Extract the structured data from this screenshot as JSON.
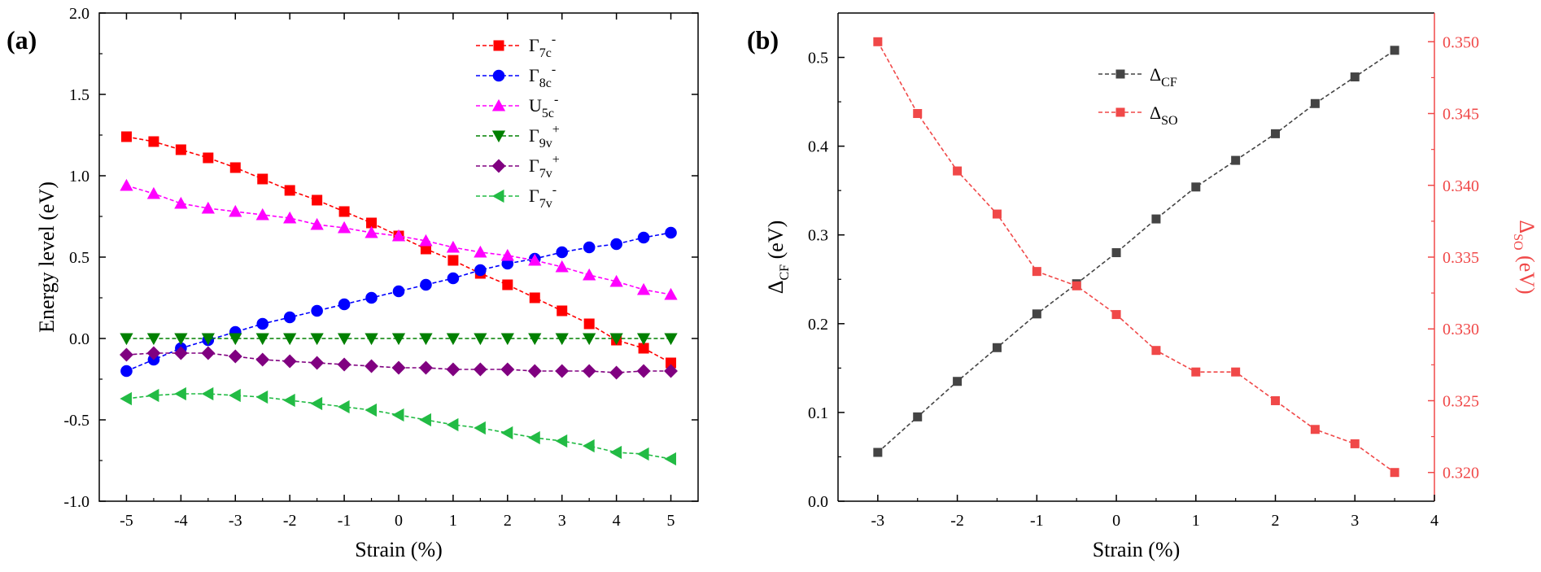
{
  "chart_data": [
    {
      "type": "line",
      "panel_label": "(a)",
      "xlabel": "Strain (%)",
      "ylabel": "Energy level (eV)",
      "xlim": [
        -5.5,
        5.5
      ],
      "ylim": [
        -1.0,
        2.0
      ],
      "xticks": [
        "-5",
        "-4",
        "-3",
        "-2",
        "-1",
        "0",
        "1",
        "2",
        "3",
        "4",
        "5"
      ],
      "yticks": [
        "-1.0",
        "-0.5",
        "0.0",
        "0.5",
        "1.0",
        "1.5",
        "2.0"
      ],
      "legend_position": "top-right",
      "x": [
        -5,
        -4.5,
        -4,
        -3.5,
        -3,
        -2.5,
        -2,
        -1.5,
        -1,
        -0.5,
        0,
        0.5,
        1,
        1.5,
        2,
        2.5,
        3,
        3.5,
        4,
        4.5,
        5
      ],
      "series": [
        {
          "name": "Γ7c-",
          "legend": {
            "main": "Γ",
            "sub": "7c",
            "sup": "-"
          },
          "color": "#ff0000",
          "marker": "square",
          "values": [
            1.24,
            1.21,
            1.16,
            1.11,
            1.05,
            0.98,
            0.91,
            0.85,
            0.78,
            0.71,
            0.63,
            0.55,
            0.48,
            0.4,
            0.33,
            0.25,
            0.17,
            0.09,
            -0.01,
            -0.06,
            -0.15
          ]
        },
        {
          "name": "Γ8c-",
          "legend": {
            "main": "Γ",
            "sub": "8c",
            "sup": "-"
          },
          "color": "#0000ff",
          "marker": "circle",
          "values": [
            -0.2,
            -0.13,
            -0.06,
            -0.01,
            0.04,
            0.09,
            0.13,
            0.17,
            0.21,
            0.25,
            0.29,
            0.33,
            0.37,
            0.42,
            0.46,
            0.49,
            0.53,
            0.56,
            0.58,
            0.62,
            0.65
          ]
        },
        {
          "name": "U5c-",
          "legend": {
            "main": "U",
            "sub": "5c",
            "sup": "-"
          },
          "color": "#ff00ff",
          "marker": "triangle-up",
          "values": [
            0.94,
            0.89,
            0.83,
            0.8,
            0.78,
            0.76,
            0.74,
            0.7,
            0.68,
            0.65,
            0.63,
            0.6,
            0.56,
            0.53,
            0.51,
            0.48,
            0.44,
            0.39,
            0.35,
            0.3,
            0.27
          ]
        },
        {
          "name": "Γ9v+",
          "legend": {
            "main": "Γ",
            "sub": "9v",
            "sup": "+"
          },
          "color": "#008000",
          "marker": "triangle-down",
          "values": [
            0.0,
            0.0,
            0.0,
            0.0,
            0.0,
            0.0,
            0.0,
            0.0,
            0.0,
            0.0,
            0.0,
            0.0,
            0.0,
            0.0,
            0.0,
            0.0,
            0.0,
            0.0,
            0.0,
            0.0,
            0.0
          ]
        },
        {
          "name": "Γ7v+",
          "legend": {
            "main": "Γ",
            "sub": "7v",
            "sup": "+"
          },
          "color": "#800080",
          "marker": "diamond",
          "values": [
            -0.1,
            -0.09,
            -0.09,
            -0.09,
            -0.11,
            -0.13,
            -0.14,
            -0.15,
            -0.16,
            -0.17,
            -0.18,
            -0.18,
            -0.19,
            -0.19,
            -0.19,
            -0.2,
            -0.2,
            -0.2,
            -0.21,
            -0.2,
            -0.2
          ]
        },
        {
          "name": "Γ7v-",
          "legend": {
            "main": "Γ",
            "sub": "7v",
            "sup": "-"
          },
          "color": "#22bb44",
          "marker": "triangle-left",
          "values": [
            -0.37,
            -0.35,
            -0.34,
            -0.34,
            -0.35,
            -0.36,
            -0.38,
            -0.4,
            -0.42,
            -0.44,
            -0.47,
            -0.5,
            -0.53,
            -0.55,
            -0.58,
            -0.61,
            -0.63,
            -0.66,
            -0.7,
            -0.71,
            -0.74
          ]
        }
      ]
    },
    {
      "type": "line",
      "panel_label": "(b)",
      "xlabel": "Strain (%)",
      "ylabel": {
        "main": "Δ",
        "sub": "CF",
        "unit": " (eV)"
      },
      "y2label": {
        "main": "Δ",
        "sub": "SO",
        "unit": " (eV)"
      },
      "xlim": [
        -3.5,
        4.0
      ],
      "ylim": [
        0.0,
        0.55
      ],
      "y2lim": [
        0.318,
        0.352
      ],
      "xticks": [
        "-3",
        "-2",
        "-1",
        "0",
        "1",
        "2",
        "3",
        "4"
      ],
      "yticks": [
        "0.0",
        "0.1",
        "0.2",
        "0.3",
        "0.4",
        "0.5"
      ],
      "y2ticks": [
        "0.320",
        "0.325",
        "0.330",
        "0.335",
        "0.340",
        "0.345",
        "0.350"
      ],
      "legend_position": "top-center",
      "x": [
        -3,
        -2.5,
        -2,
        -1.5,
        -1,
        -0.5,
        0,
        0.5,
        1,
        1.5,
        2,
        2.5,
        3,
        3.5
      ],
      "series": [
        {
          "name": "ΔCF",
          "legend": {
            "main": "Δ",
            "sub": "CF"
          },
          "axis": "left",
          "color": "#444444",
          "marker": "square",
          "values": [
            0.055,
            0.095,
            0.135,
            0.173,
            0.211,
            0.245,
            0.28,
            0.318,
            0.354,
            0.384,
            0.414,
            0.448,
            0.478,
            0.508
          ]
        },
        {
          "name": "ΔSO",
          "legend": {
            "main": "Δ",
            "sub": "SO"
          },
          "axis": "right",
          "color": "#f04848",
          "marker": "square",
          "values": [
            0.35,
            0.345,
            0.341,
            0.338,
            0.334,
            0.333,
            0.331,
            0.3285,
            0.327,
            0.327,
            0.325,
            0.323,
            0.322,
            0.32
          ]
        }
      ]
    }
  ]
}
